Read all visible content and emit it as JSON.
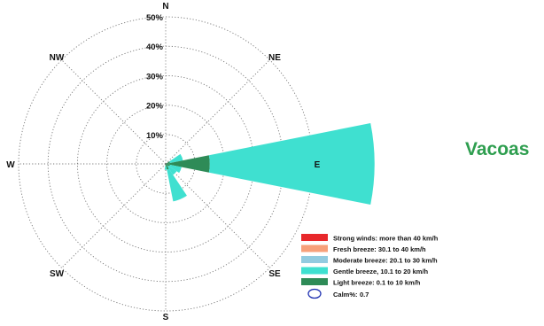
{
  "station": {
    "name": "Vacoas"
  },
  "chart_data": {
    "type": "wind-rose",
    "rings": [
      10,
      20,
      30,
      40,
      50
    ],
    "ring_labels": [
      "10%",
      "20%",
      "30%",
      "40%",
      "50%"
    ],
    "r_max": 50,
    "directions": [
      "N",
      "NE",
      "E",
      "SE",
      "S",
      "SW",
      "W",
      "NW"
    ],
    "categories": [
      {
        "key": "strong",
        "label": "Strong winds: more than 40 km/h",
        "color": "#e8282b"
      },
      {
        "key": "fresh",
        "label": "Fresh breeze: 30.1 to 40 km/h",
        "color": "#f7a07a"
      },
      {
        "key": "moderate",
        "label": "Moderate breeze: 20.1 to 30 km/h",
        "color": "#92cbe0"
      },
      {
        "key": "gentle",
        "label": "Gentle breeze, 10.1 to 20 km/h",
        "color": "#3fe0d0"
      },
      {
        "key": "light",
        "label": "Light breeze: 0.1 to 10 km/h",
        "color": "#2e8b57"
      }
    ],
    "calm": {
      "label": "Calm%:",
      "value": "0.7",
      "marker_color": "#1d2fb0"
    },
    "sectors": [
      {
        "direction": "ENE",
        "bearing": 67.5,
        "light": 1.5,
        "gentle": 4.5
      },
      {
        "direction": "E",
        "bearing": 90,
        "light": 15,
        "gentle": 56
      },
      {
        "direction": "ESE",
        "bearing": 112.5,
        "light": 1.5,
        "gentle": 4
      },
      {
        "direction": "SE",
        "bearing": 135,
        "light": 1,
        "gentle": 3.5
      },
      {
        "direction": "SSE",
        "bearing": 157.5,
        "light": 2,
        "gentle": 11
      },
      {
        "direction": "S",
        "bearing": 180,
        "light": 0.8,
        "gentle": 1.2
      }
    ]
  }
}
